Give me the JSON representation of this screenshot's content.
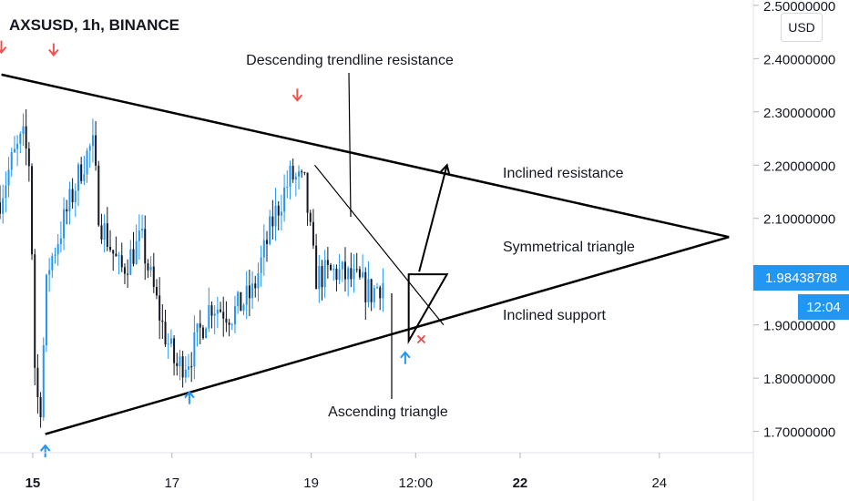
{
  "header": {
    "title": "AXSUSD, 1h, BINANCE",
    "currency_button": "USD"
  },
  "last_price_label": "1.98438788",
  "countdown_label": "12:04",
  "colors": {
    "up": "#2196f3",
    "down": "#131722",
    "accent": "#2196f3",
    "arrow_red": "#ef5350",
    "line": "#000000"
  },
  "chart_data": {
    "type": "candlestick",
    "symbol": "AXSUSD",
    "interval": "1h",
    "exchange": "BINANCE",
    "title": "AXSUSD, 1h, BINANCE",
    "y_axis": {
      "range": [
        1.66,
        2.51
      ],
      "ticks": [
        "2.50000000",
        "2.40000000",
        "2.30000000",
        "2.20000000",
        "2.10000000",
        "1.90000000",
        "1.80000000",
        "1.70000000"
      ],
      "tick_values": [
        2.5,
        2.4,
        2.3,
        2.2,
        2.1,
        1.9,
        1.8,
        1.7
      ]
    },
    "x_axis": {
      "ticks": [
        "15",
        "17",
        "19",
        "12:00",
        "22",
        "24"
      ],
      "tick_days": [
        15,
        17,
        19,
        20.5,
        22,
        24
      ],
      "bold": [
        "15",
        "22"
      ],
      "range_days": [
        14.53,
        25.35
      ]
    },
    "last_price": 1.98438788,
    "candles_summary": {
      "start_day": 14.53,
      "end_day": 20.05,
      "anchors": [
        [
          14.55,
          2.13
        ],
        [
          14.75,
          2.21
        ],
        [
          14.9,
          2.25
        ],
        [
          15.0,
          2.2
        ],
        [
          15.08,
          1.78
        ],
        [
          15.15,
          1.74
        ],
        [
          15.25,
          2.0
        ],
        [
          15.5,
          2.1
        ],
        [
          15.75,
          2.2
        ],
        [
          15.9,
          2.24
        ],
        [
          16.0,
          2.1
        ],
        [
          16.3,
          2.0
        ],
        [
          16.6,
          2.06
        ],
        [
          16.9,
          1.9
        ],
        [
          17.1,
          1.82
        ],
        [
          17.3,
          1.84
        ],
        [
          17.6,
          1.94
        ],
        [
          17.9,
          1.92
        ],
        [
          18.2,
          1.96
        ],
        [
          18.5,
          2.1
        ],
        [
          18.75,
          2.18
        ],
        [
          18.95,
          2.16
        ],
        [
          19.1,
          1.99
        ],
        [
          19.4,
          2.0
        ],
        [
          19.7,
          1.98
        ],
        [
          19.9,
          1.96
        ],
        [
          20.05,
          1.98
        ]
      ]
    },
    "annotations": [
      {
        "text": "Descending trendline resistance"
      },
      {
        "text": "Inclined resistance"
      },
      {
        "text": "Symmetrical triangle"
      },
      {
        "text": "Inclined support"
      },
      {
        "text": "Ascending triangle"
      }
    ],
    "drawings": {
      "resistance_line": [
        [
          14.55,
          2.37
        ],
        [
          25.0,
          2.065
        ]
      ],
      "support_line": [
        [
          15.18,
          1.695
        ],
        [
          25.0,
          2.065
        ]
      ],
      "descending_line": [
        [
          19.05,
          2.2
        ],
        [
          20.9,
          1.9
        ]
      ],
      "ascending_triangle": [
        [
          20.4,
          1.87
        ],
        [
          20.4,
          1.995
        ],
        [
          20.95,
          1.995
        ]
      ],
      "breakout_arrow": [
        [
          20.55,
          2.0
        ],
        [
          20.95,
          2.2
        ]
      ],
      "down_arrows": [
        [
          14.55,
          2.42
        ],
        [
          15.3,
          2.415
        ],
        [
          18.8,
          2.33
        ]
      ],
      "up_arrows": [
        [
          15.18,
          1.665
        ],
        [
          17.25,
          1.765
        ],
        [
          20.35,
          1.84
        ]
      ],
      "x_mark": [
        20.58,
        1.873
      ]
    }
  }
}
